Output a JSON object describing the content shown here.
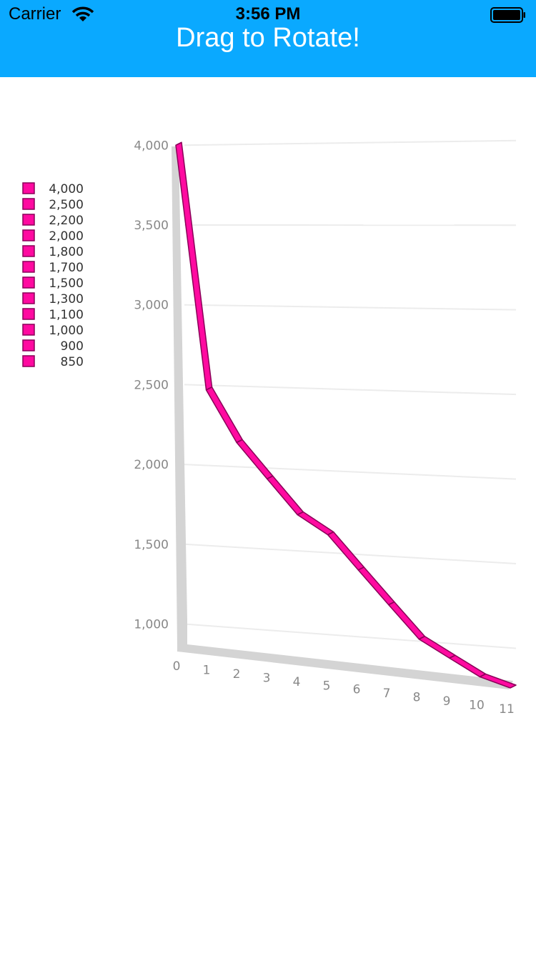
{
  "status": {
    "carrier": "Carrier",
    "time": "3:56 PM"
  },
  "nav": {
    "title": "Drag to Rotate!"
  },
  "chart_data": {
    "type": "line",
    "view": "3d",
    "x": [
      0,
      1,
      2,
      3,
      4,
      5,
      6,
      7,
      8,
      9,
      10,
      11
    ],
    "values": [
      4000,
      2500,
      2200,
      2000,
      1800,
      1700,
      1500,
      1300,
      1100,
      1000,
      900,
      850
    ],
    "xticks": [
      "0",
      "1",
      "2",
      "3",
      "4",
      "5",
      "6",
      "7",
      "8",
      "9",
      "10",
      "11"
    ],
    "yticks": [
      {
        "value": 1000,
        "label": "1,000"
      },
      {
        "value": 1500,
        "label": "1,500"
      },
      {
        "value": 2000,
        "label": "2,000"
      },
      {
        "value": 2500,
        "label": "2,500"
      },
      {
        "value": 3000,
        "label": "3,000"
      },
      {
        "value": 3500,
        "label": "3,500"
      },
      {
        "value": 4000,
        "label": "4,000"
      }
    ],
    "ylim": [
      850,
      4000
    ],
    "legend": [
      "4,000",
      "2,500",
      "2,200",
      "2,000",
      "1,800",
      "1,700",
      "1,500",
      "1,300",
      "1,100",
      "1,000",
      "900",
      "850"
    ],
    "legend_position": "left",
    "line_color": "#ff0aa0",
    "grid": true
  }
}
